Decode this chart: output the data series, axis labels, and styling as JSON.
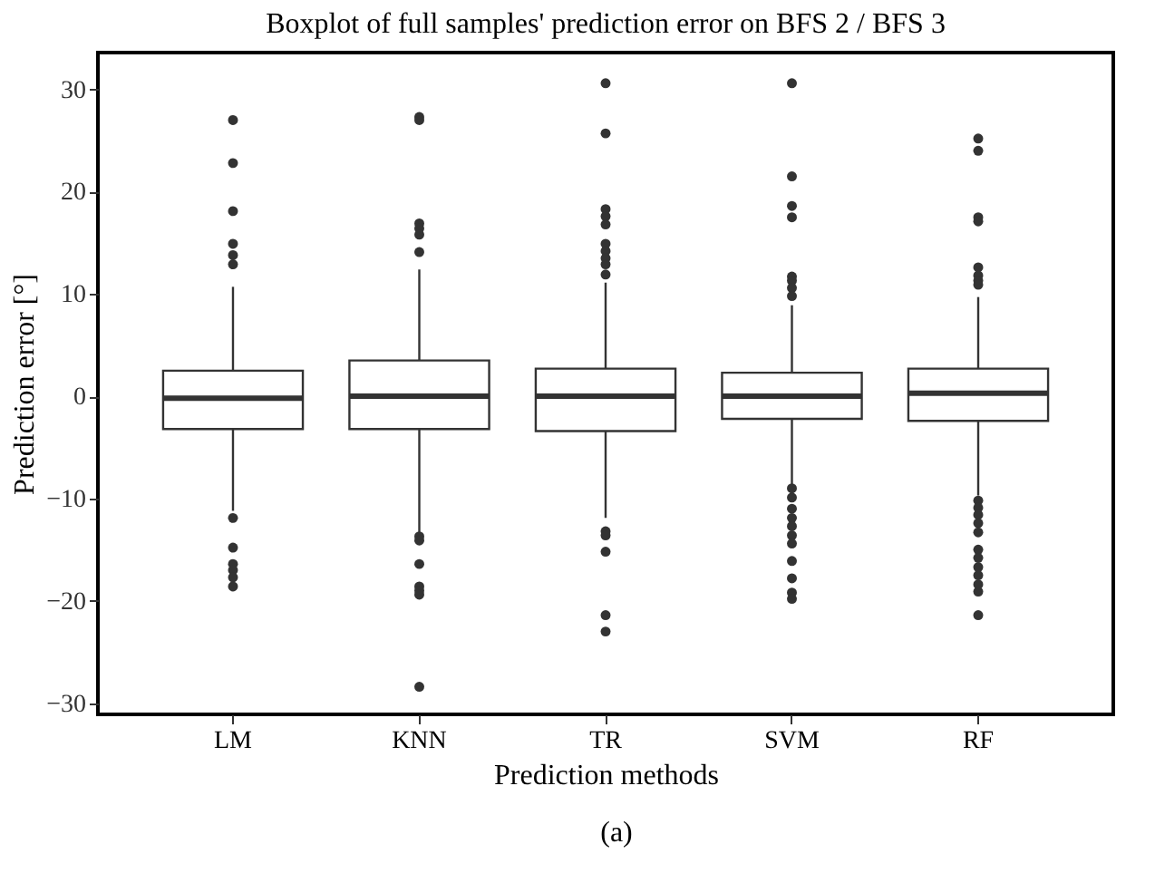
{
  "chart_data": {
    "type": "box",
    "title": "Boxplot of full samples' prediction error on BFS 2 / BFS 3",
    "xlabel": "Prediction methods",
    "ylabel": "Prediction error [°]",
    "categories": [
      "LM",
      "KNN",
      "TR",
      "SVM",
      "RF"
    ],
    "ylim": [
      -31.1,
      33.6
    ],
    "yticks": [
      -30,
      -20,
      -10,
      0,
      10,
      20,
      30
    ],
    "grid": false,
    "color": "#333333",
    "boxes": [
      {
        "low": -11.2,
        "q1": -3.2,
        "median": -0.2,
        "q3": 2.5,
        "high": 10.7,
        "outliers": [
          27.0,
          22.8,
          18.1,
          14.9,
          13.8,
          12.9,
          -11.9,
          -14.8,
          -16.4,
          -17.0,
          -17.7,
          -18.6
        ]
      },
      {
        "low": -13.5,
        "q1": -3.2,
        "median": 0.0,
        "q3": 3.5,
        "high": 12.4,
        "outliers": [
          27.3,
          27.0,
          16.9,
          16.4,
          15.8,
          14.1,
          -13.7,
          -14.1,
          -16.4,
          -18.6,
          -19.0,
          -19.4,
          -28.4
        ]
      },
      {
        "low": -11.9,
        "q1": -3.4,
        "median": 0.0,
        "q3": 2.7,
        "high": 11.1,
        "outliers": [
          30.6,
          25.7,
          18.3,
          17.6,
          16.8,
          14.9,
          14.2,
          13.5,
          12.9,
          11.9,
          -13.2,
          -13.6,
          -15.2,
          -21.4,
          -23.0
        ]
      },
      {
        "low": -8.6,
        "q1": -2.2,
        "median": 0.0,
        "q3": 2.3,
        "high": 8.9,
        "outliers": [
          30.6,
          21.5,
          18.6,
          17.5,
          11.7,
          11.3,
          10.6,
          9.8,
          -9.0,
          -9.9,
          -11.0,
          -11.9,
          -12.7,
          -13.6,
          -14.4,
          -16.1,
          -17.8,
          -19.2,
          -19.8
        ]
      },
      {
        "low": -9.7,
        "q1": -2.4,
        "median": 0.3,
        "q3": 2.7,
        "high": 9.7,
        "outliers": [
          25.2,
          24.0,
          17.5,
          17.1,
          12.6,
          11.8,
          11.3,
          10.9,
          -10.2,
          -10.9,
          -11.6,
          -12.4,
          -13.3,
          -15.0,
          -15.8,
          -16.7,
          -17.5,
          -18.4,
          -19.1,
          -21.4
        ]
      }
    ],
    "annotations": [
      "(a)"
    ]
  }
}
